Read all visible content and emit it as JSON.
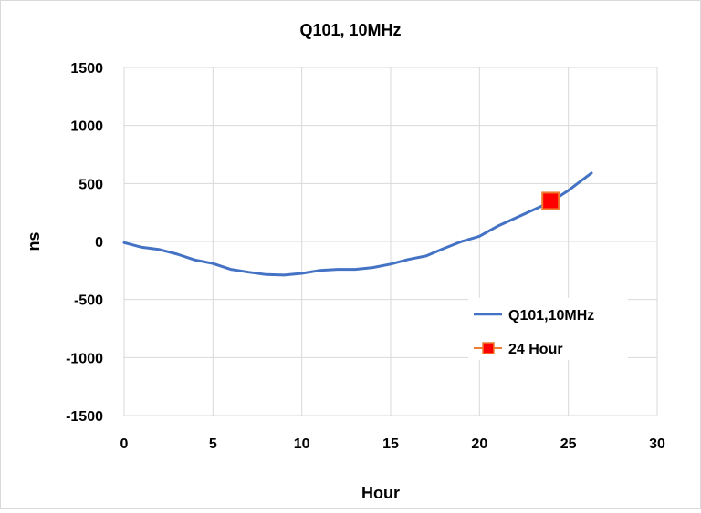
{
  "chart_data": {
    "type": "line",
    "title": "Q101, 10MHz",
    "xlabel": "Hour",
    "ylabel": "ns",
    "xlim": [
      0,
      30
    ],
    "ylim": [
      -1500,
      1500
    ],
    "xticks": [
      0,
      5,
      10,
      15,
      20,
      25,
      30
    ],
    "yticks": [
      -1500,
      -1000,
      -500,
      0,
      500,
      1000,
      1500
    ],
    "xtick_labels": [
      "0",
      "5",
      "10",
      "15",
      "20",
      "25",
      "30"
    ],
    "ytick_labels": [
      "-1500",
      "-1000",
      "-500",
      "0",
      "500",
      "1000",
      "1500"
    ],
    "grid": true,
    "legend_position": "right",
    "series": [
      {
        "name": "Q101,10MHz",
        "color": "#4472C4",
        "type": "line",
        "x": [
          0,
          1,
          2,
          3,
          4,
          5,
          6,
          7,
          8,
          9,
          10,
          11,
          12,
          13,
          14,
          15,
          16,
          17,
          18,
          19,
          20,
          21,
          22,
          23,
          24,
          25,
          26,
          26.3
        ],
        "y": [
          -10,
          -50,
          -70,
          -110,
          -160,
          -190,
          -240,
          -265,
          -285,
          -290,
          -275,
          -250,
          -240,
          -240,
          -225,
          -195,
          -155,
          -125,
          -60,
          0,
          45,
          130,
          200,
          270,
          340,
          440,
          555,
          590
        ]
      },
      {
        "name": "24 Hour",
        "color": "#FF0000",
        "edge_color": "#ED7D31",
        "type": "marker",
        "x": [
          24
        ],
        "y": [
          350
        ]
      }
    ]
  }
}
